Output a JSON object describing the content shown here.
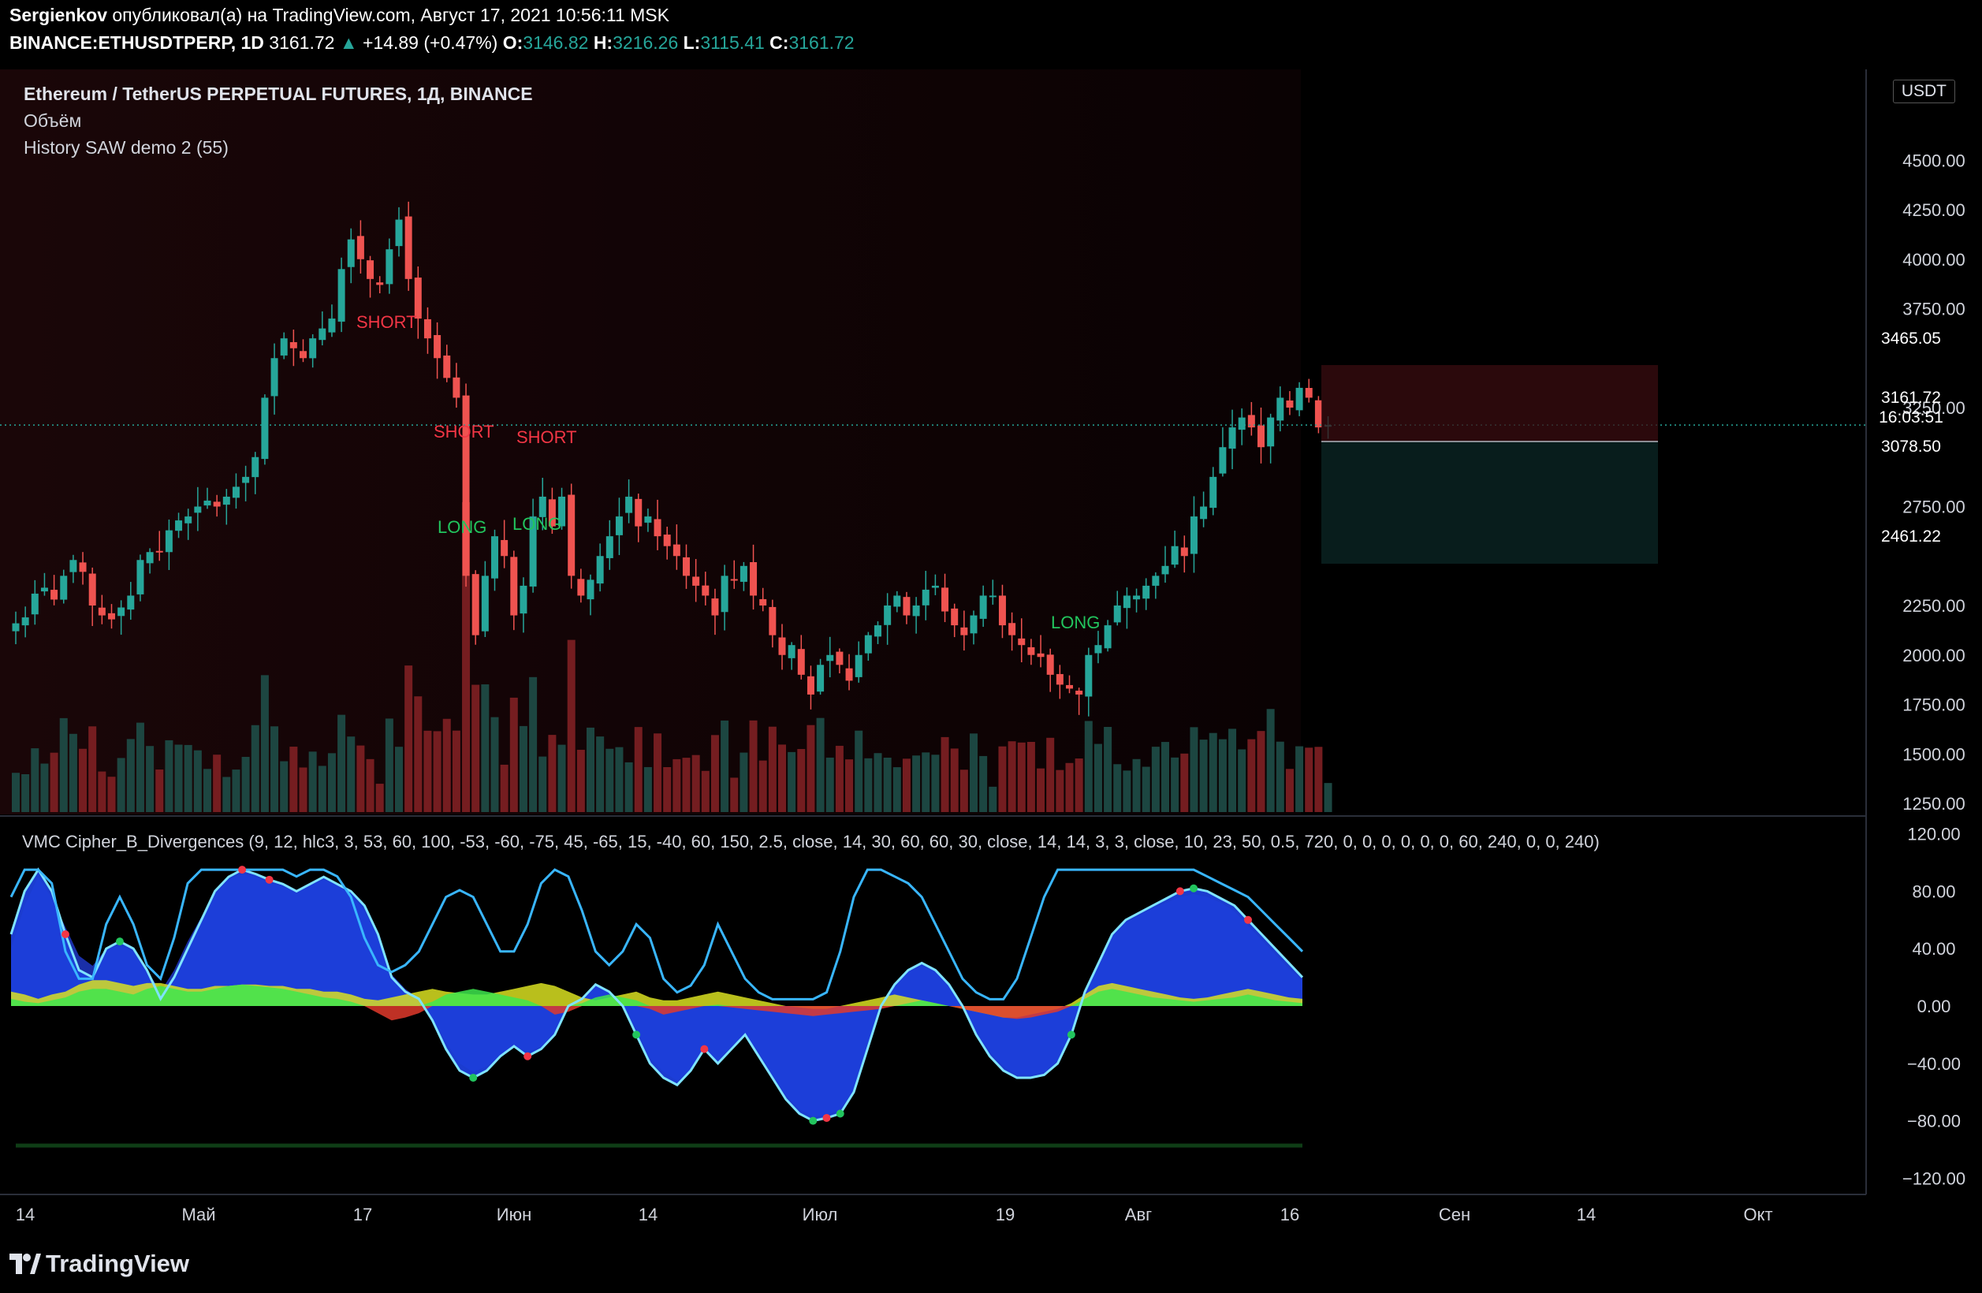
{
  "header": {
    "author": "Sergienkov",
    "published": "опубликовал(а) на TradingView.com, Август 17, 2021 10:56:11 MSK",
    "symbol": "BINANCE:ETHUSDTPERP, 1D",
    "last": "3161.72",
    "change": "+14.89 (+0.47%)",
    "o_label": "O:",
    "o": "3146.82",
    "h_label": "H:",
    "h": "3216.26",
    "l_label": "L:",
    "l": "3115.41",
    "c_label": "C:",
    "c": "3161.72"
  },
  "legend": {
    "title": "Ethereum / TetherUS PERPETUAL FUTURES, 1Д, BINANCE",
    "volume": "Объём",
    "indicator": "History SAW demo 2 (55)",
    "oscillator": "VMC Cipher_B_Divergences (9, 12, hlc3, 3, 53, 60, 100, -53, -60, -75, 45, -65, 15, -40, 60, 150, 2.5, close, 14, 30, 60, 60, 30, close, 14, 14, 3, 3, close, 10, 23, 50, 0.5, 720, 0, 0, 0, 0, 0, 0, 60, 240, 0, 0, 240)"
  },
  "price_axis": {
    "currency": "USDT",
    "ticks": [
      "4500.00",
      "4250.00",
      "4000.00",
      "3750.00",
      "3250.00",
      "2750.00",
      "2250.00",
      "2000.00",
      "1750.00",
      "1500.00",
      "1250.00"
    ],
    "tags": [
      {
        "label": "3465.05",
        "color": "#f23645"
      },
      {
        "label": "3161.72",
        "sub": "16:03:51",
        "color": "#26a69a"
      },
      {
        "label": "3078.50",
        "color": "#787b86"
      },
      {
        "label": "2461.22",
        "color": "#089981"
      }
    ]
  },
  "osc_axis": {
    "ticks": [
      "120.00",
      "80.00",
      "40.00",
      "0.00",
      "−40.00",
      "−80.00",
      "−120.00"
    ]
  },
  "time_axis": {
    "labels": [
      "14",
      "Май",
      "17",
      "Июн",
      "14",
      "Июл",
      "19",
      "Авг",
      "16",
      "Сен",
      "14",
      "Окт"
    ]
  },
  "signals": [
    {
      "label": "SHORT",
      "type": "short"
    },
    {
      "label": "SHORT",
      "type": "short"
    },
    {
      "label": "SHORT",
      "type": "short"
    },
    {
      "label": "LONG",
      "type": "long"
    },
    {
      "label": "LONG",
      "type": "long"
    },
    {
      "label": "LONG",
      "type": "long"
    }
  ],
  "colors": {
    "up": "#26a69a",
    "down": "#ef5350",
    "long": "#22c55e",
    "short": "#f23645",
    "osc_blue": "#1c3fdb",
    "osc_light": "#7fe3ff"
  },
  "footer": {
    "brand": "TradingView"
  },
  "chart_data": {
    "type": "candlestick",
    "symbol": "ETHUSDTPERP",
    "interval": "1D",
    "ylim": [
      1100,
      4750
    ],
    "x_range": [
      "2021-04-09",
      "2021-10-08"
    ],
    "last_close": 3161.72,
    "levels": {
      "stop": 3465.05,
      "entry": 3078.5,
      "target": 2461.22
    },
    "closes": [
      2160,
      2190,
      2310,
      2340,
      2280,
      2400,
      2480,
      2420,
      2250,
      2200,
      2180,
      2240,
      2300,
      2480,
      2520,
      2520,
      2630,
      2680,
      2700,
      2750,
      2780,
      2750,
      2800,
      2850,
      2900,
      3000,
      3300,
      3500,
      3600,
      3550,
      3500,
      3600,
      3650,
      3700,
      3950,
      4100,
      4000,
      3900,
      3870,
      4050,
      4200,
      3900,
      3700,
      3600,
      3500,
      3400,
      3300,
      2400,
      2100,
      2400,
      2600,
      2500,
      2200,
      2350,
      2700,
      2800,
      2650,
      2800,
      2400,
      2300,
      2380,
      2500,
      2600,
      2700,
      2800,
      2650,
      2700,
      2600,
      2550,
      2500,
      2400,
      2350,
      2300,
      2200,
      2400,
      2380,
      2450,
      2300,
      2250,
      2100,
      2000,
      2050,
      1900,
      1800,
      1950,
      2000,
      1950,
      1870,
      2000,
      2100,
      2150,
      2250,
      2300,
      2200,
      2250,
      2330,
      2350,
      2220,
      2150,
      2100,
      2200,
      2300,
      2300,
      2150,
      2100,
      2050,
      2000,
      1990,
      1900,
      1850,
      1830,
      1800,
      2000,
      2050,
      2150,
      2250,
      2300,
      2300,
      2350,
      2400,
      2450,
      2550,
      2500,
      2700,
      2750,
      2900,
      3050,
      3150,
      3200,
      3150,
      3050,
      3200,
      3300,
      3250,
      3350,
      3300,
      3150,
      3162
    ]
  },
  "osc_data": {
    "ylim": [
      -120,
      120
    ],
    "wave1": [
      50,
      80,
      95,
      80,
      50,
      25,
      20,
      40,
      45,
      40,
      25,
      5,
      20,
      40,
      60,
      80,
      90,
      95,
      92,
      88,
      85,
      80,
      85,
      90,
      85,
      80,
      70,
      50,
      20,
      10,
      5,
      -10,
      -30,
      -45,
      -50,
      -45,
      -35,
      -28,
      -35,
      -30,
      -20,
      0,
      5,
      15,
      10,
      0,
      -20,
      -40,
      -50,
      -55,
      -45,
      -30,
      -40,
      -30,
      -20,
      -35,
      -50,
      -65,
      -75,
      -80,
      -78,
      -75,
      -60,
      -30,
      0,
      15,
      25,
      30,
      25,
      15,
      0,
      -20,
      -35,
      -45,
      -50,
      -50,
      -48,
      -40,
      -20,
      10,
      30,
      50,
      60,
      65,
      70,
      75,
      80,
      82,
      80,
      75,
      70,
      60,
      50,
      40,
      30,
      20
    ],
    "wave2": [
      40,
      70,
      90,
      75,
      55,
      35,
      28,
      40,
      42,
      38,
      25,
      10,
      25,
      45,
      62,
      78,
      88,
      92,
      90,
      86,
      83,
      80,
      84,
      88,
      84,
      78,
      66,
      48,
      22,
      12,
      5,
      -8,
      -25,
      -40,
      -46,
      -42,
      -34,
      -28,
      -32,
      -28,
      -18,
      0,
      6,
      14,
      10,
      2,
      -16,
      -36,
      -46,
      -52,
      -44,
      -30,
      -38,
      -28,
      -20,
      -32,
      -48,
      -62,
      -72,
      -77,
      -76,
      -72,
      -58,
      -30,
      0,
      14,
      24,
      28,
      24,
      14,
      0,
      -18,
      -32,
      -42,
      -48,
      -48,
      -46,
      -38,
      -18,
      10,
      30,
      48,
      58,
      63,
      68,
      72,
      76,
      78,
      76,
      72,
      66,
      56,
      46,
      36,
      26,
      18
    ],
    "mfi": [
      5,
      3,
      2,
      4,
      6,
      10,
      12,
      12,
      10,
      8,
      12,
      14,
      12,
      10,
      10,
      12,
      14,
      15,
      14,
      13,
      12,
      10,
      8,
      6,
      5,
      3,
      0,
      -5,
      -10,
      -8,
      -5,
      3,
      8,
      10,
      12,
      10,
      8,
      6,
      4,
      0,
      -6,
      -4,
      2,
      6,
      8,
      6,
      4,
      -2,
      -6,
      -4,
      -2,
      0,
      1,
      -1,
      -2,
      -3,
      -4,
      -5,
      -6,
      -7,
      -6,
      -5,
      -4,
      -3,
      -2,
      0,
      2,
      4,
      2,
      0,
      -2,
      -4,
      -6,
      -8,
      -9,
      -8,
      -6,
      -4,
      0,
      5,
      10,
      12,
      10,
      8,
      6,
      5,
      4,
      3,
      4,
      5,
      6,
      8,
      6,
      4,
      3,
      2
    ],
    "rsi_band": [
      10,
      8,
      5,
      8,
      10,
      15,
      18,
      18,
      16,
      14,
      16,
      16,
      14,
      12,
      12,
      14,
      14,
      15,
      15,
      14,
      14,
      12,
      12,
      10,
      10,
      8,
      5,
      4,
      6,
      8,
      10,
      12,
      10,
      9,
      8,
      8,
      10,
      12,
      14,
      16,
      14,
      10,
      6,
      4,
      6,
      8,
      10,
      6,
      4,
      4,
      6,
      8,
      10,
      8,
      6,
      4,
      2,
      0,
      -1,
      -2,
      -2,
      0,
      2,
      4,
      6,
      8,
      6,
      4,
      2,
      0,
      -2,
      -4,
      -6,
      -8,
      -8,
      -6,
      -4,
      -2,
      2,
      8,
      14,
      16,
      14,
      12,
      10,
      8,
      6,
      5,
      6,
      8,
      10,
      12,
      10,
      8,
      6,
      5
    ],
    "stoch": [
      80,
      100,
      100,
      90,
      40,
      20,
      20,
      60,
      80,
      60,
      30,
      20,
      50,
      90,
      100,
      100,
      100,
      100,
      100,
      100,
      100,
      95,
      100,
      100,
      95,
      80,
      50,
      30,
      25,
      30,
      40,
      60,
      80,
      85,
      80,
      60,
      40,
      40,
      60,
      90,
      100,
      95,
      70,
      40,
      30,
      40,
      60,
      50,
      20,
      10,
      15,
      30,
      60,
      40,
      20,
      10,
      5,
      5,
      5,
      5,
      10,
      40,
      80,
      100,
      100,
      95,
      90,
      80,
      60,
      40,
      20,
      10,
      5,
      5,
      20,
      50,
      80,
      100,
      100,
      100,
      100,
      100,
      100,
      100,
      100,
      100,
      100,
      100,
      95,
      90,
      85,
      80,
      70,
      60,
      50,
      40
    ]
  }
}
